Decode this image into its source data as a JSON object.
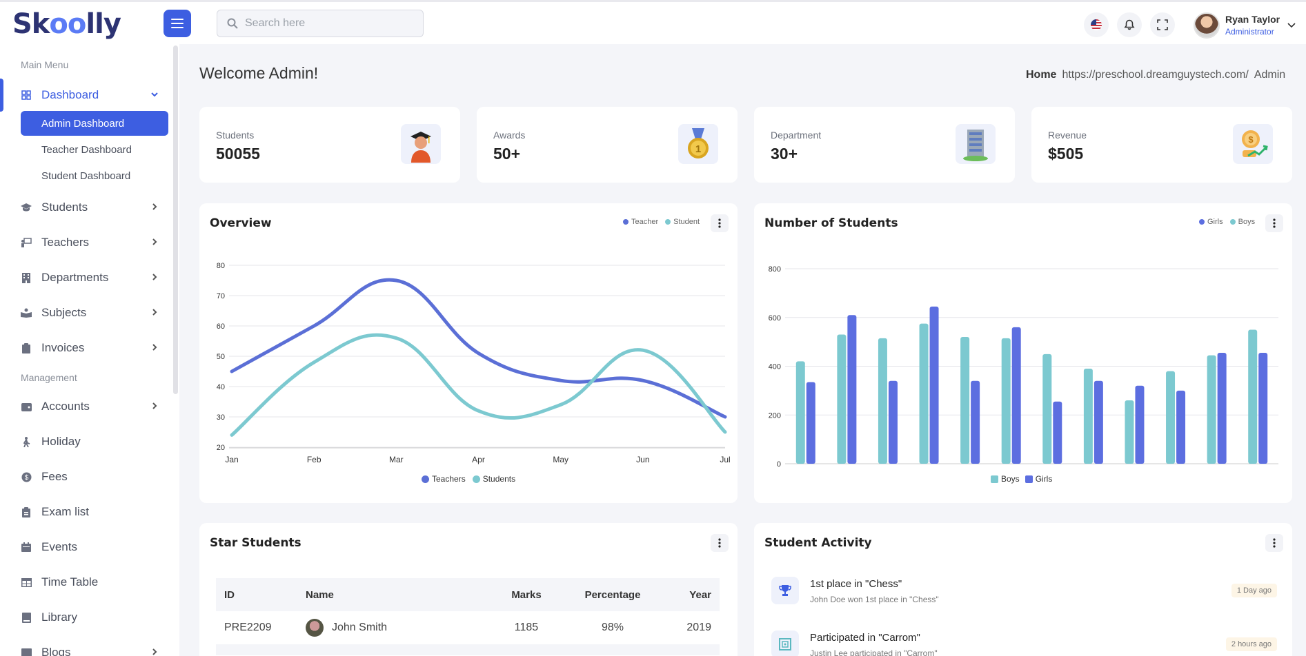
{
  "app": {
    "logo": "Skoolly"
  },
  "header": {
    "search_placeholder": "Search here",
    "user_name": "Ryan Taylor",
    "user_role": "Administrator"
  },
  "sidebar": {
    "section_main": "Main Menu",
    "section_management": "Management",
    "dashboard": "Dashboard",
    "sub": [
      "Admin Dashboard",
      "Teacher Dashboard",
      "Student Dashboard"
    ],
    "items": [
      "Students",
      "Teachers",
      "Departments",
      "Subjects",
      "Invoices"
    ],
    "mgmt_items": [
      "Accounts",
      "Holiday",
      "Fees",
      "Exam list",
      "Events",
      "Time Table",
      "Library",
      "Blogs"
    ]
  },
  "page": {
    "welcome": "Welcome Admin!",
    "breadcrumb_home": "Home",
    "breadcrumb_url": "https://preschool.dreamguystech.com/",
    "breadcrumb_current": "Admin"
  },
  "stats": [
    {
      "label": "Students",
      "value": "50055"
    },
    {
      "label": "Awards",
      "value": "50+"
    },
    {
      "label": "Department",
      "value": "30+"
    },
    {
      "label": "Revenue",
      "value": "$505"
    }
  ],
  "colors": {
    "accent": "#3d5ee1",
    "teacher": "#5b6fd6",
    "student": "#7cc9d0",
    "girls": "#5c6ee0",
    "boys": "#7cc9d0"
  },
  "overview": {
    "title": "Overview",
    "legend_top": [
      "Teacher",
      "Student"
    ],
    "legend_bottom": [
      "Teachers",
      "Students"
    ]
  },
  "students_chart": {
    "title": "Number of Students",
    "legend_top": [
      "Girls",
      "Boys"
    ],
    "legend_bottom": [
      "Boys",
      "Girls"
    ]
  },
  "chart_data": [
    {
      "type": "line",
      "x": [
        "Jan",
        "Feb",
        "Mar",
        "Apr",
        "May",
        "Jun",
        "Jul"
      ],
      "ylim": [
        20,
        80
      ],
      "yticks": [
        20,
        30,
        40,
        50,
        60,
        70,
        80
      ],
      "grid": true,
      "series": [
        {
          "name": "Teachers",
          "values": [
            45,
            60,
            75,
            51,
            42,
            42,
            30
          ]
        },
        {
          "name": "Students",
          "values": [
            24,
            48,
            56,
            32,
            34,
            52,
            25
          ]
        }
      ]
    },
    {
      "type": "bar",
      "categories": [
        "",
        "",
        "",
        "",
        "",
        "",
        "",
        "",
        "",
        "",
        "",
        ""
      ],
      "ylim": [
        0,
        800
      ],
      "yticks": [
        0,
        200,
        400,
        600,
        800
      ],
      "grid": true,
      "series": [
        {
          "name": "Boys",
          "values": [
            420,
            530,
            515,
            575,
            520,
            515,
            450,
            390,
            260,
            380,
            445,
            550
          ]
        },
        {
          "name": "Girls",
          "values": [
            335,
            610,
            340,
            645,
            340,
            560,
            255,
            340,
            320,
            300,
            455,
            455
          ]
        }
      ]
    }
  ],
  "star_students": {
    "title": "Star Students",
    "columns": [
      "ID",
      "Name",
      "Marks",
      "Percentage",
      "Year"
    ],
    "rows": [
      {
        "id": "PRE2209",
        "name": "John Smith",
        "marks": "1185",
        "pct": "98%",
        "year": "2019"
      }
    ]
  },
  "activity": {
    "title": "Student Activity",
    "items": [
      {
        "title": "1st place in \"Chess\"",
        "desc": "John Doe won 1st place in \"Chess\"",
        "time": "1 Day ago"
      },
      {
        "title": "Participated in \"Carrom\"",
        "desc": "Justin Lee participated in \"Carrom\"",
        "time": "2 hours ago"
      }
    ]
  }
}
